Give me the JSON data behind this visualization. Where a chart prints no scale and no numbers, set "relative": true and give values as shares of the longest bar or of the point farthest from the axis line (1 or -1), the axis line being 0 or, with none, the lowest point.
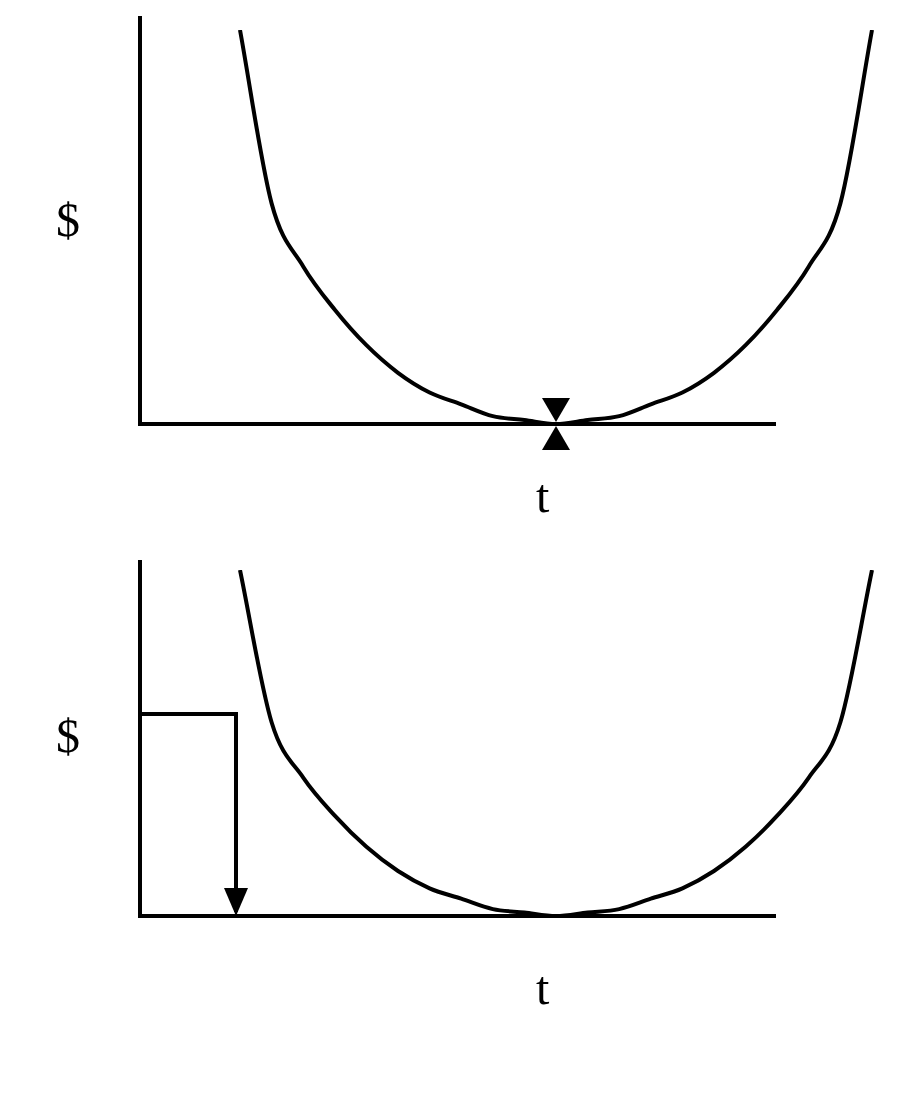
{
  "chart_data": [
    {
      "type": "line",
      "relative": true,
      "ylabel": "$",
      "xlabel": "t",
      "marker": "none",
      "line_style": "solid",
      "categories": [
        null,
        null,
        null,
        null,
        null,
        null,
        null,
        null,
        null,
        null,
        null,
        null,
        null,
        null,
        null,
        null,
        null,
        null,
        null,
        null,
        null
      ],
      "series": [
        {
          "color": "#000000",
          "values": [
            1,
            0.56,
            0.4,
            0.29,
            0.2,
            0.13,
            0.08,
            0.05,
            0.02,
            0.01,
            0,
            0.01,
            0.02,
            0.05,
            0.08,
            0.13,
            0.2,
            0.29,
            0.4,
            0.56,
            1
          ]
        }
      ]
    },
    {
      "type": "line",
      "relative": true,
      "ylabel": "$",
      "xlabel": "t",
      "marker": "none",
      "line_style": "solid",
      "categories": [
        null,
        null,
        null,
        null,
        null,
        null,
        null,
        null,
        null,
        null,
        null,
        null,
        null,
        null,
        null,
        null,
        null,
        null,
        null,
        null,
        null
      ],
      "series": [
        {
          "color": "#000000",
          "values": [
            1,
            0.56,
            0.4,
            0.29,
            0.2,
            0.13,
            0.08,
            0.05,
            0.02,
            0.01,
            0,
            0.01,
            0.02,
            0.05,
            0.08,
            0.13,
            0.2,
            0.29,
            0.4,
            0.56,
            1
          ]
        }
      ]
    }
  ]
}
